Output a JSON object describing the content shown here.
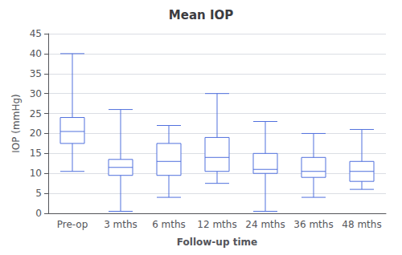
{
  "chart_data": {
    "type": "boxplot",
    "title": "Mean IOP",
    "xlabel": "Follow-up time",
    "ylabel": "IOP (mmHg)",
    "categories": [
      "Pre-op",
      "3 mths",
      "6 mths",
      "12 mths",
      "24 mths",
      "36 mths",
      "48 mths"
    ],
    "values": [
      [
        10.5,
        17.5,
        20.5,
        24.0,
        40.0
      ],
      [
        0.5,
        9.5,
        11.5,
        13.5,
        26.0
      ],
      [
        4.0,
        9.5,
        13.0,
        17.5,
        22.0
      ],
      [
        7.5,
        10.5,
        14.0,
        19.0,
        30.0
      ],
      [
        0.5,
        10.0,
        11.0,
        15.0,
        23.0
      ],
      [
        4.0,
        9.0,
        10.5,
        14.0,
        20.0
      ],
      [
        6.0,
        8.0,
        10.5,
        13.0,
        21.0
      ]
    ],
    "ylim": [
      0,
      45
    ],
    "yticks": [
      0,
      5,
      10,
      15,
      20,
      25,
      30,
      35,
      40,
      45
    ],
    "grid": true
  }
}
